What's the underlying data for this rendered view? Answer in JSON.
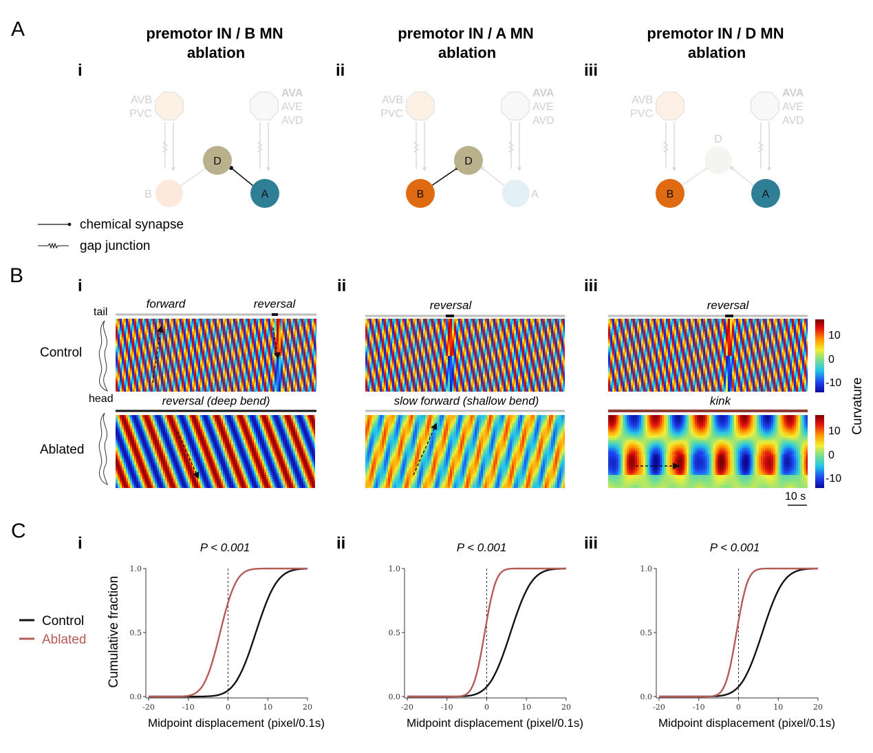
{
  "panel_letters": {
    "A": "A",
    "B": "B",
    "C": "C"
  },
  "columns": [
    {
      "roman": "i",
      "title_line1": "premotor IN / B MN",
      "title_line2": "ablation",
      "diagram": {
        "left_labels": [
          "AVB",
          "PVC"
        ],
        "right_labels": [
          "AVA",
          "AVE",
          "AVD"
        ],
        "nodes": {
          "D": {
            "text": "D",
            "faded": false
          },
          "B": {
            "text": "B",
            "faded": true
          },
          "A": {
            "text": "A",
            "faded": false
          }
        }
      },
      "control_label": "forward",
      "control_label2": "reversal",
      "ablated_label": "reversal (deep bend)",
      "pvalue": "P < 0.001",
      "control_shift": 7,
      "ablated_shift": -2
    },
    {
      "roman": "ii",
      "title_line1": "premotor IN / A MN",
      "title_line2": "ablation",
      "diagram": {
        "left_labels": [
          "AVB",
          "PVC"
        ],
        "right_labels": [
          "AVA",
          "AVE",
          "AVD"
        ],
        "nodes": {
          "D": {
            "text": "D",
            "faded": false
          },
          "B": {
            "text": "B",
            "faded": false
          },
          "A": {
            "text": "A",
            "faded": true
          }
        }
      },
      "control_label": "reversal",
      "ablated_label": "slow forward (shallow bend)",
      "pvalue": "P < 0.001",
      "control_shift": 6,
      "ablated_shift": -0.5
    },
    {
      "roman": "iii",
      "title_line1": "premotor IN / D MN",
      "title_line2": "ablation",
      "diagram": {
        "left_labels": [
          "AVB",
          "PVC"
        ],
        "right_labels": [
          "AVA",
          "AVE",
          "AVD"
        ],
        "nodes": {
          "D": {
            "text": "D",
            "faded": true
          },
          "B": {
            "text": "B",
            "faded": false
          },
          "A": {
            "text": "A",
            "faded": false
          }
        }
      },
      "control_label": "reversal",
      "ablated_label": "kink",
      "pvalue": "P < 0.001",
      "control_shift": 6,
      "ablated_shift": -0.5
    }
  ],
  "legend_synapse": {
    "chemical": "chemical synapse",
    "gap": "gap junction"
  },
  "worm": {
    "tail": "tail",
    "head": "head"
  },
  "row_labels": {
    "control": "Control",
    "ablated": "Ablated"
  },
  "colorbar": {
    "title": "Curvature",
    "ticks": [
      "10",
      "0",
      "-10"
    ]
  },
  "scale_bar": "10 s",
  "cdf_axes": {
    "xlabel": "Midpoint displacement (pixel/0.1s)",
    "ylabel": "Cumulative fraction",
    "xticks": [
      "-20",
      "-10",
      "0",
      "10",
      "20"
    ],
    "yticks": [
      "0.0",
      "0.5",
      "1.0"
    ]
  },
  "cdf_legend": [
    {
      "name": "Control",
      "color": "#111111"
    },
    {
      "name": "Ablated",
      "color": "#b55a55"
    }
  ],
  "colors": {
    "B_node": "#e06a12",
    "A_node": "#2f7f96",
    "D_node": "#b9b08c",
    "ablated_line": "#b55a55",
    "kink_bar": "#8e3b34"
  }
}
